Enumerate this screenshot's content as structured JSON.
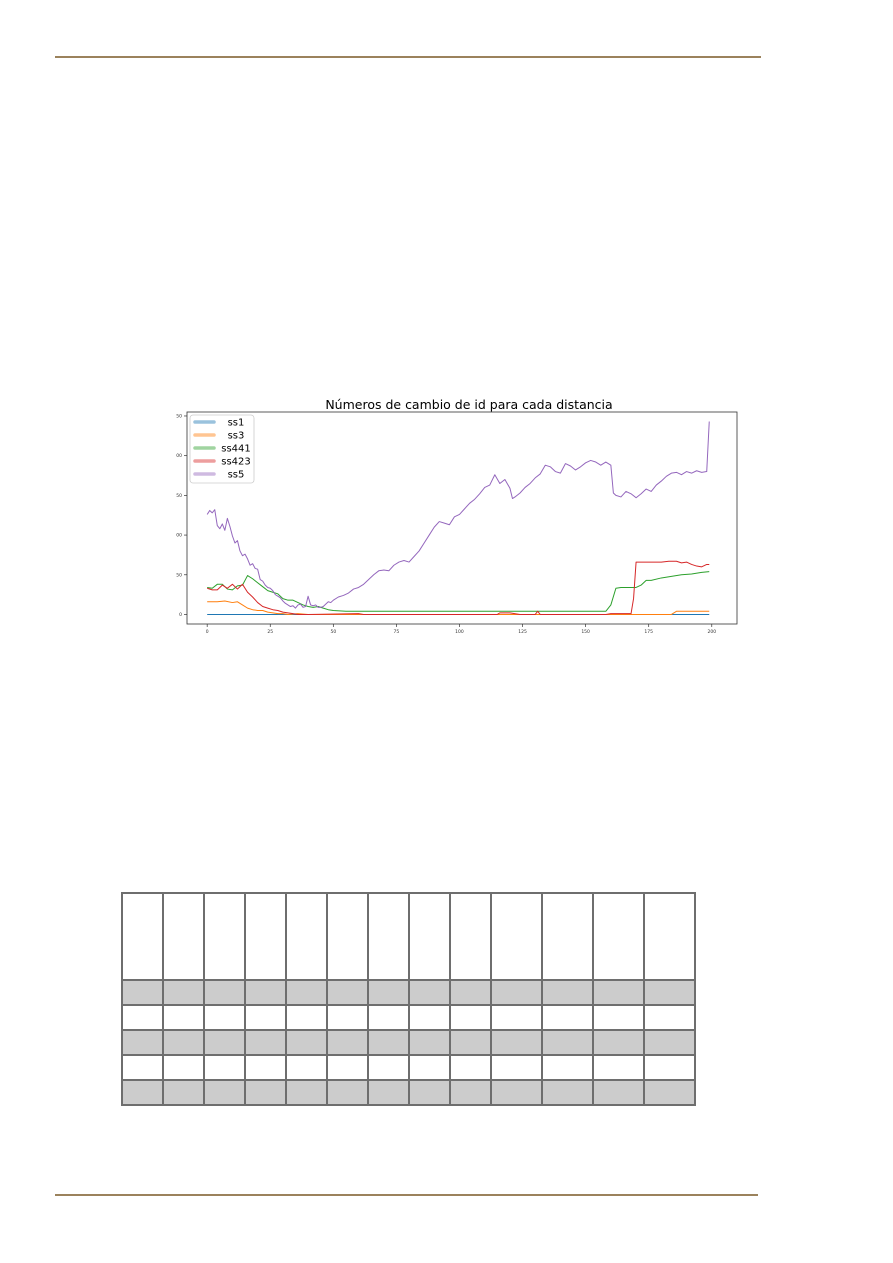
{
  "chart_data": {
    "type": "line",
    "title": "Números de cambio de id para cada distancia",
    "xlabel": "",
    "ylabel": "",
    "xlim": [
      -8,
      210
    ],
    "ylim": [
      -12,
      255
    ],
    "xticks": [
      0,
      25,
      50,
      75,
      100,
      125,
      150,
      175,
      200
    ],
    "yticks": [
      0,
      50,
      100,
      150,
      200,
      250
    ],
    "grid": false,
    "legend_position": "top-left",
    "series": [
      {
        "name": "ss1",
        "color": "#1f77b4",
        "points": [
          [
            0,
            0
          ],
          [
            50,
            0
          ],
          [
            100,
            0
          ],
          [
            150,
            0
          ],
          [
            199,
            0
          ]
        ]
      },
      {
        "name": "ss3",
        "color": "#ff7f0e",
        "points": [
          [
            0,
            16
          ],
          [
            4,
            16
          ],
          [
            7,
            17
          ],
          [
            10,
            15
          ],
          [
            12,
            16
          ],
          [
            14,
            12
          ],
          [
            16,
            8
          ],
          [
            18,
            6
          ],
          [
            20,
            5
          ],
          [
            22,
            5
          ],
          [
            24,
            3
          ],
          [
            26,
            2
          ],
          [
            28,
            1
          ],
          [
            30,
            1
          ],
          [
            32,
            0
          ],
          [
            36,
            1
          ],
          [
            40,
            0
          ],
          [
            60,
            0
          ],
          [
            100,
            0
          ],
          [
            140,
            0
          ],
          [
            160,
            0
          ],
          [
            184,
            0
          ],
          [
            186,
            4
          ],
          [
            199,
            4
          ]
        ]
      },
      {
        "name": "ss441",
        "color": "#2ca02c",
        "points": [
          [
            0,
            34
          ],
          [
            2,
            33
          ],
          [
            4,
            38
          ],
          [
            6,
            38
          ],
          [
            8,
            32
          ],
          [
            10,
            31
          ],
          [
            12,
            36
          ],
          [
            14,
            37
          ],
          [
            16,
            49
          ],
          [
            18,
            45
          ],
          [
            20,
            40
          ],
          [
            22,
            35
          ],
          [
            24,
            30
          ],
          [
            26,
            28
          ],
          [
            28,
            26
          ],
          [
            30,
            20
          ],
          [
            32,
            18
          ],
          [
            34,
            18
          ],
          [
            36,
            15
          ],
          [
            38,
            12
          ],
          [
            40,
            10
          ],
          [
            42,
            9
          ],
          [
            44,
            10
          ],
          [
            46,
            8
          ],
          [
            48,
            6
          ],
          [
            50,
            5
          ],
          [
            55,
            4
          ],
          [
            60,
            4
          ],
          [
            80,
            4
          ],
          [
            100,
            4
          ],
          [
            120,
            4
          ],
          [
            130,
            4
          ],
          [
            140,
            4
          ],
          [
            150,
            4
          ],
          [
            158,
            4
          ],
          [
            160,
            12
          ],
          [
            162,
            33
          ],
          [
            164,
            34
          ],
          [
            168,
            34
          ],
          [
            170,
            34
          ],
          [
            172,
            37
          ],
          [
            174,
            43
          ],
          [
            176,
            43
          ],
          [
            180,
            46
          ],
          [
            184,
            48
          ],
          [
            188,
            50
          ],
          [
            192,
            51
          ],
          [
            196,
            53
          ],
          [
            199,
            54
          ]
        ]
      },
      {
        "name": "ss423",
        "color": "#d62728",
        "points": [
          [
            0,
            33
          ],
          [
            2,
            31
          ],
          [
            4,
            31
          ],
          [
            6,
            37
          ],
          [
            8,
            33
          ],
          [
            10,
            38
          ],
          [
            12,
            32
          ],
          [
            14,
            38
          ],
          [
            16,
            28
          ],
          [
            18,
            22
          ],
          [
            20,
            15
          ],
          [
            22,
            10
          ],
          [
            24,
            8
          ],
          [
            26,
            6
          ],
          [
            28,
            5
          ],
          [
            30,
            3
          ],
          [
            32,
            2
          ],
          [
            34,
            1
          ],
          [
            36,
            0
          ],
          [
            40,
            0
          ],
          [
            60,
            1
          ],
          [
            62,
            0
          ],
          [
            100,
            0
          ],
          [
            115,
            0
          ],
          [
            116,
            2
          ],
          [
            118,
            2
          ],
          [
            120,
            2
          ],
          [
            124,
            0
          ],
          [
            130,
            0
          ],
          [
            131,
            4
          ],
          [
            132,
            0
          ],
          [
            150,
            0
          ],
          [
            158,
            0
          ],
          [
            160,
            1
          ],
          [
            168,
            1
          ],
          [
            169,
            20
          ],
          [
            170,
            66
          ],
          [
            175,
            66
          ],
          [
            180,
            66
          ],
          [
            183,
            67
          ],
          [
            186,
            67
          ],
          [
            188,
            65
          ],
          [
            190,
            66
          ],
          [
            192,
            63
          ],
          [
            194,
            61
          ],
          [
            196,
            60
          ],
          [
            198,
            63
          ],
          [
            199,
            63
          ]
        ]
      },
      {
        "name": "ss5",
        "color": "#9467bd",
        "points": [
          [
            0,
            126
          ],
          [
            1,
            131
          ],
          [
            2,
            128
          ],
          [
            3,
            132
          ],
          [
            4,
            112
          ],
          [
            5,
            108
          ],
          [
            6,
            114
          ],
          [
            7,
            106
          ],
          [
            8,
            121
          ],
          [
            9,
            111
          ],
          [
            10,
            99
          ],
          [
            11,
            90
          ],
          [
            12,
            93
          ],
          [
            13,
            80
          ],
          [
            14,
            74
          ],
          [
            15,
            76
          ],
          [
            16,
            70
          ],
          [
            17,
            62
          ],
          [
            18,
            64
          ],
          [
            19,
            58
          ],
          [
            20,
            57
          ],
          [
            21,
            44
          ],
          [
            22,
            42
          ],
          [
            23,
            37
          ],
          [
            24,
            34
          ],
          [
            25,
            33
          ],
          [
            26,
            30
          ],
          [
            27,
            25
          ],
          [
            28,
            23
          ],
          [
            29,
            21
          ],
          [
            30,
            17
          ],
          [
            31,
            14
          ],
          [
            32,
            12
          ],
          [
            33,
            10
          ],
          [
            34,
            11
          ],
          [
            35,
            8
          ],
          [
            36,
            12
          ],
          [
            37,
            13
          ],
          [
            38,
            9
          ],
          [
            39,
            10
          ],
          [
            40,
            23
          ],
          [
            41,
            12
          ],
          [
            42,
            11
          ],
          [
            43,
            12
          ],
          [
            44,
            9
          ],
          [
            45,
            9
          ],
          [
            46,
            10
          ],
          [
            47,
            13
          ],
          [
            48,
            16
          ],
          [
            49,
            15
          ],
          [
            50,
            18
          ],
          [
            52,
            22
          ],
          [
            54,
            24
          ],
          [
            56,
            27
          ],
          [
            58,
            32
          ],
          [
            60,
            34
          ],
          [
            62,
            38
          ],
          [
            64,
            44
          ],
          [
            66,
            50
          ],
          [
            68,
            55
          ],
          [
            70,
            56
          ],
          [
            72,
            55
          ],
          [
            74,
            62
          ],
          [
            76,
            66
          ],
          [
            78,
            68
          ],
          [
            80,
            66
          ],
          [
            82,
            73
          ],
          [
            84,
            80
          ],
          [
            86,
            90
          ],
          [
            88,
            100
          ],
          [
            90,
            110
          ],
          [
            92,
            117
          ],
          [
            94,
            115
          ],
          [
            96,
            113
          ],
          [
            98,
            123
          ],
          [
            100,
            126
          ],
          [
            102,
            133
          ],
          [
            104,
            140
          ],
          [
            106,
            145
          ],
          [
            108,
            152
          ],
          [
            110,
            160
          ],
          [
            112,
            163
          ],
          [
            114,
            176
          ],
          [
            116,
            165
          ],
          [
            118,
            170
          ],
          [
            120,
            159
          ],
          [
            121,
            146
          ],
          [
            122,
            148
          ],
          [
            124,
            153
          ],
          [
            126,
            160
          ],
          [
            128,
            165
          ],
          [
            130,
            172
          ],
          [
            132,
            177
          ],
          [
            134,
            188
          ],
          [
            136,
            186
          ],
          [
            138,
            180
          ],
          [
            140,
            178
          ],
          [
            142,
            190
          ],
          [
            144,
            187
          ],
          [
            146,
            182
          ],
          [
            148,
            186
          ],
          [
            150,
            191
          ],
          [
            152,
            194
          ],
          [
            154,
            192
          ],
          [
            156,
            188
          ],
          [
            158,
            192
          ],
          [
            160,
            188
          ],
          [
            161,
            153
          ],
          [
            162,
            150
          ],
          [
            164,
            148
          ],
          [
            166,
            155
          ],
          [
            168,
            152
          ],
          [
            170,
            147
          ],
          [
            172,
            152
          ],
          [
            174,
            158
          ],
          [
            176,
            155
          ],
          [
            178,
            163
          ],
          [
            180,
            168
          ],
          [
            182,
            174
          ],
          [
            184,
            178
          ],
          [
            186,
            179
          ],
          [
            188,
            176
          ],
          [
            190,
            180
          ],
          [
            192,
            178
          ],
          [
            194,
            181
          ],
          [
            196,
            179
          ],
          [
            198,
            180
          ],
          [
            199,
            243
          ]
        ]
      }
    ]
  },
  "table": {
    "columns": 13,
    "header_rows": 1,
    "body_rows": 5
  }
}
